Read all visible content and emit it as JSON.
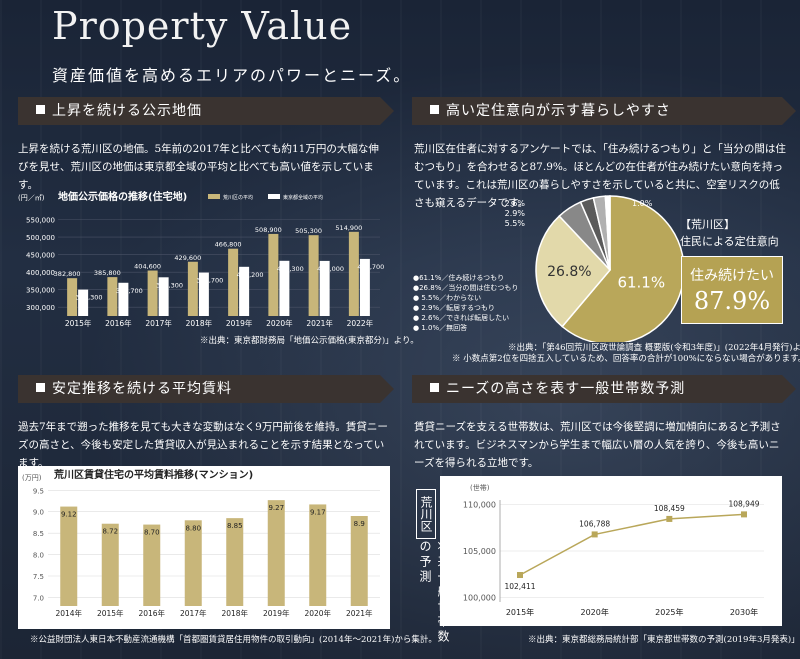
{
  "title": "Property Value",
  "subtitle": "資産価値を高めるエリアのパワーとニーズ。",
  "sections": {
    "land": {
      "heading": "上昇を続ける公示地価",
      "text": "上昇を続ける荒川区の地価。5年前の2017年と比べても約11万円の大幅な伸びを見せ、荒川区の地価は東京都全域の平均と比べても高い値を示しています。",
      "source": "※出典：東京都財務局「地価公示価格(東京都分)」より。"
    },
    "stay": {
      "heading": "高い定住意向が示す暮らしやすさ",
      "text": "荒川区在住者に対するアンケートでは、「住み続けるつもり」と「当分の間は住むつもり」を合わせると87.9%。ほとんどの在住者が住み続けたい意向を持っています。これは荒川区の暮らしやすさを示していると共に、空室リスクの低さも窺えるデータです。",
      "source1": "※出典：「第46回荒川区政世論調査 概要版(令和3年度)」(2022年4月発行)より。",
      "source2": "※ 小数点第2位を四捨五入しているため、回答率の合計が100%にならない場合があります。",
      "box_label": "住み続けたい",
      "box_value": "87.9%",
      "pie_title_1": "【荒川区】",
      "pie_title_2": "住民による定住意向"
    },
    "rent": {
      "heading": "安定推移を続ける平均賃料",
      "text": "過去7年まで遡った推移を見ても大きな変動はなく9万円前後を維持。賃貸ニーズの高さと、今後も安定した賃貸収入が見込まれることを示す結果となっています。",
      "source": "※公益財団法人東日本不動産流通機構「首都圏賃貸居住用物件の取引動向」(2014年〜2021年)から集計。"
    },
    "households": {
      "heading": "ニーズの高さを表す一般世帯数予測",
      "text": "賃貸ニーズを支える世帯数は、荒川区では今後堅調に増加傾向にあると予測されています。ビジネスマンから学生まで幅広い層の人気を誇り、今後も高いニーズを得られる立地です。",
      "source": "※出典：東京都総務局統計部「東京都世帯数の予測(2019年3月発表)」より。",
      "side_label": "将来一般世帯数の予測",
      "side_tag": "荒川区"
    }
  },
  "chart_data": [
    {
      "type": "bar",
      "title": "地価公示価格の推移(住宅地)",
      "ylabel": "(円／㎡)",
      "categories": [
        "2015年",
        "2016年",
        "2017年",
        "2018年",
        "2019年",
        "2020年",
        "2021年",
        "2022年"
      ],
      "series": [
        {
          "name": "荒川区の平均",
          "values": [
            382800,
            385800,
            404600,
            429600,
            466800,
            508900,
            505300,
            514900
          ],
          "labels": [
            "382,800",
            "385,800",
            "404,600",
            "429,600",
            "466,800",
            "508,900",
            "505,300",
            "514,900"
          ],
          "color": "#c8b67a"
        },
        {
          "name": "東京都全域の平均",
          "values": [
            350300,
            369700,
            385300,
            398700,
            415200,
            432300,
            432000,
            437700
          ],
          "labels": [
            "350,300",
            "369,700",
            "385,300",
            "398,700",
            "415,200",
            "432,300",
            "432,000",
            "437,700"
          ],
          "color": "#ffffff"
        }
      ],
      "yticks": [
        "550,000",
        "500,000",
        "450,000",
        "400,000",
        "350,000",
        "300,000"
      ],
      "ylim": [
        275000,
        560000
      ]
    },
    {
      "type": "pie",
      "labels": [
        "住み続けるつもり",
        "当分の間は住むつもり",
        "わからない",
        "転居するつもり",
        "できれば転居したい",
        "無回答"
      ],
      "values": [
        61.1,
        26.8,
        5.5,
        2.9,
        2.6,
        1.0
      ],
      "value_labels": [
        "61.1%",
        "26.8%",
        "5.5%",
        "2.9%",
        "2.6%",
        "1.0%"
      ],
      "legend": [
        "●61.1%／住み続けるつもり",
        "●26.8%／当分の間は住むつもり",
        "● 5.5%／わからない",
        "● 2.9%／転居するつもり",
        "● 2.6%／できれば転居したい",
        "● 1.0%／無回答"
      ],
      "colors": [
        "#b9a75a",
        "#e2d9aa",
        "#888888",
        "#5a5a5a",
        "#b0b0b0",
        "#ffffff"
      ]
    },
    {
      "type": "bar",
      "title": "荒川区賃貸住宅の平均賃料推移(マンション)",
      "ylabel": "(万円)",
      "categories": [
        "2014年",
        "2015年",
        "2016年",
        "2017年",
        "2018年",
        "2019年",
        "2020年",
        "2021年"
      ],
      "values": [
        9.12,
        8.72,
        8.7,
        8.8,
        8.85,
        9.27,
        9.17,
        8.9
      ],
      "value_labels": [
        "9.12",
        "8.72",
        "8.70",
        "8.80",
        "8.85",
        "9.27",
        "9.17",
        "8.9"
      ],
      "yticks": [
        "9.5",
        "9.0",
        "8.5",
        "8.0",
        "7.5",
        "7.0"
      ],
      "ylim": [
        6.8,
        9.6
      ],
      "color": "#c8b67a"
    },
    {
      "type": "line",
      "ylabel": "(世帯)",
      "categories": [
        "2015年",
        "2020年",
        "2025年",
        "2030年"
      ],
      "values": [
        102411,
        106788,
        108459,
        108949
      ],
      "value_labels": [
        "102,411",
        "106,788",
        "108,459",
        "108,949"
      ],
      "yticks": [
        "110,000",
        "105,000",
        "100,000"
      ],
      "ylim": [
        99500,
        110500
      ]
    }
  ]
}
